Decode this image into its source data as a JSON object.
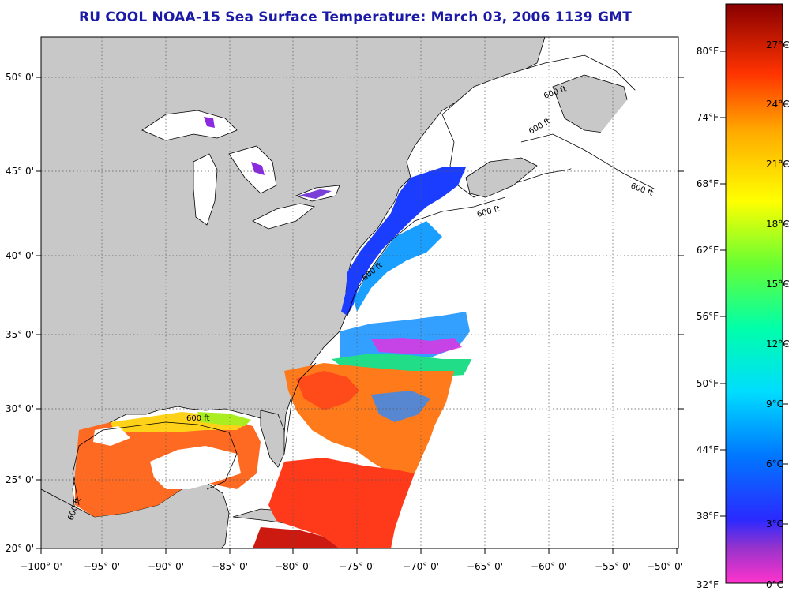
{
  "title": "RU COOL  NOAA-15  Sea Surface Temperature:  March 03, 2006 1139 GMT",
  "map": {
    "lon_ticks": [
      "−100° 0'",
      "−95° 0'",
      "−90° 0'",
      "−85° 0'",
      "−80° 0'",
      "−75° 0'",
      "−70° 0'",
      "−65° 0'",
      "−60° 0'",
      "−55° 0'",
      "−50° 0'"
    ],
    "lat_ticks": [
      "50° 0'",
      "45° 0'",
      "40° 0'",
      "35° 0'",
      "30° 0'",
      "25° 0'",
      "20° 0'"
    ],
    "contour_labels": [
      "600 ft",
      "600 ft",
      "600 ft",
      "600 ft",
      "600 ft",
      "600 ft",
      "600 ft"
    ],
    "colors": {
      "land": "#c8c8c8",
      "ocean_cloud": "#ffffff",
      "title": "#1a1aa6"
    }
  },
  "colorbar": {
    "fahrenheit_labels": [
      "80°F",
      "74°F",
      "68°F",
      "62°F",
      "56°F",
      "50°F",
      "44°F",
      "38°F",
      "32°F"
    ],
    "celsius_labels": [
      "27°C",
      "24°C",
      "21°C",
      "18°C",
      "15°C",
      "12°C",
      "9°C",
      "6°C",
      "3°C",
      "0°C"
    ],
    "range_c": [
      0,
      28.5
    ]
  }
}
